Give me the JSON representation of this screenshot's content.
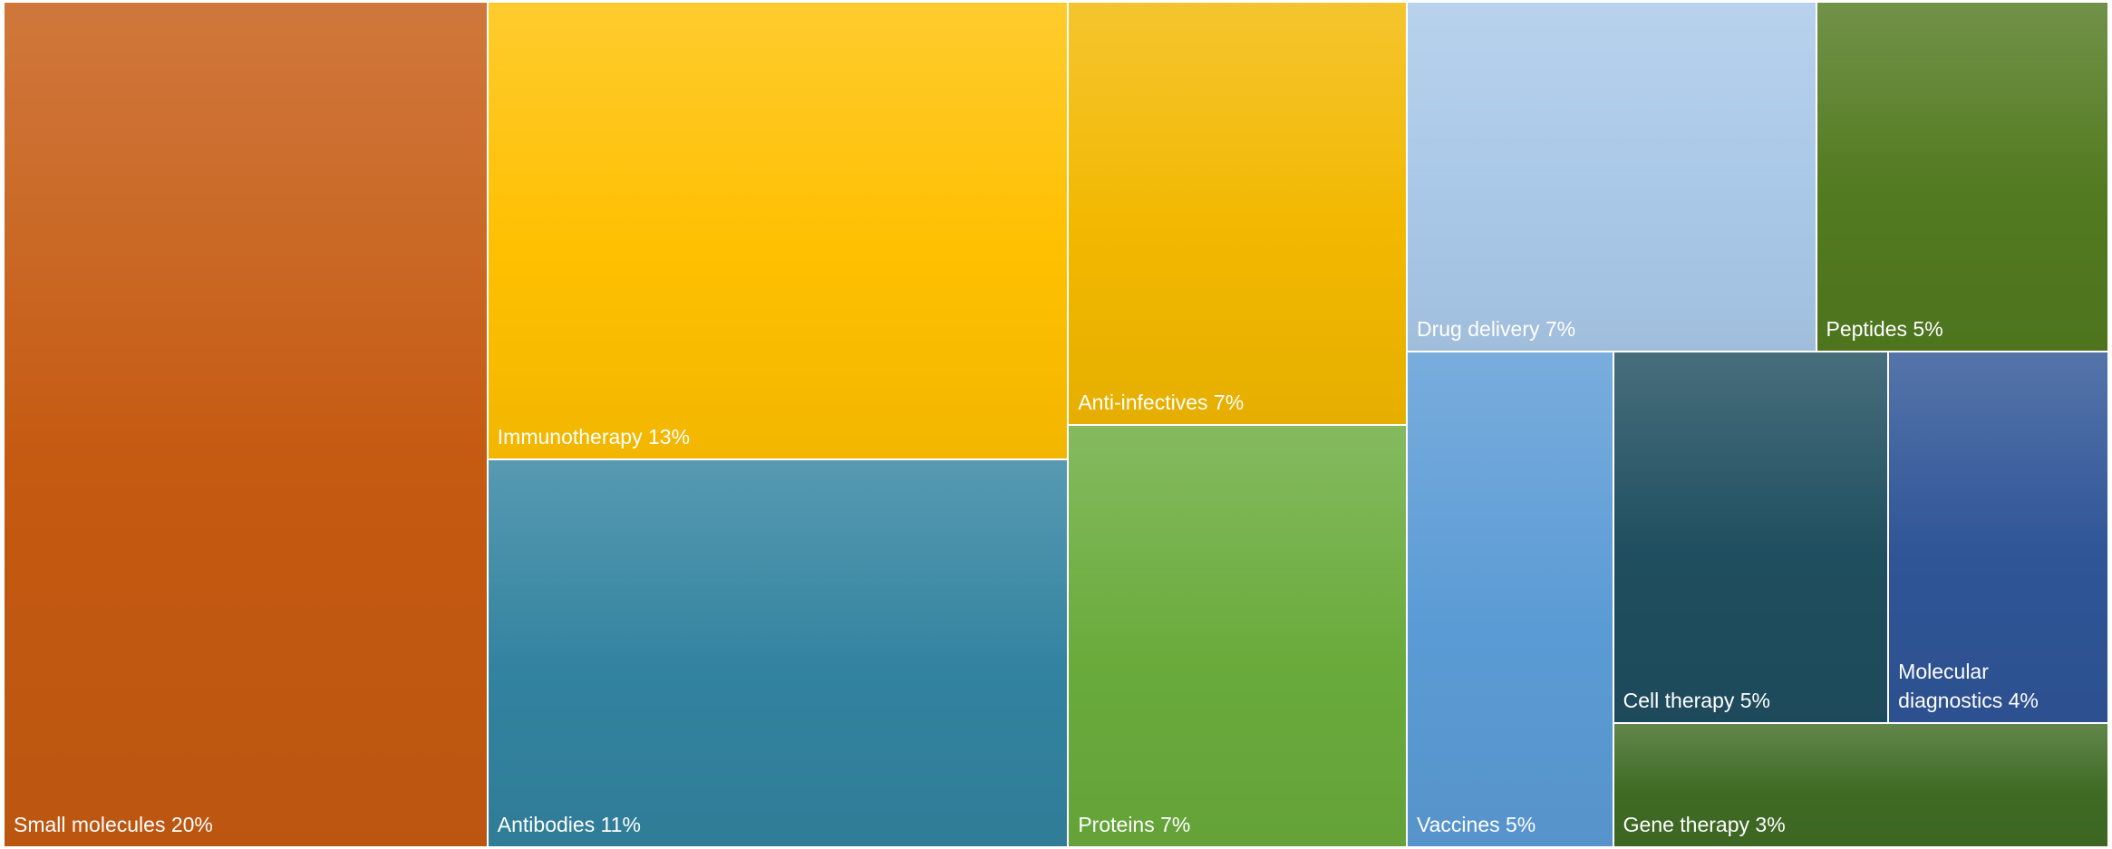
{
  "chart_data": {
    "type": "treemap",
    "categories": [
      "Small molecules",
      "Immunotherapy",
      "Antibodies",
      "Anti-infectives",
      "Proteins",
      "Drug delivery",
      "Peptides",
      "Vaccines",
      "Cell therapy",
      "Molecular diagnostics",
      "Gene therapy"
    ],
    "values": [
      20,
      13,
      11,
      7,
      7,
      7,
      5,
      5,
      5,
      4,
      3
    ],
    "value_labels": [
      "20%",
      "13%",
      "11%",
      "7%",
      "7%",
      "7%",
      "5%",
      "5%",
      "5%",
      "4%",
      "3%"
    ],
    "colors": [
      "#c55a11",
      "#ffc000",
      "#3283a0",
      "#f2b800",
      "#6aab3c",
      "#a9c8e8",
      "#527a20",
      "#5b9bd5",
      "#1f4e5f",
      "#2f5597",
      "#3f6b24"
    ]
  }
}
